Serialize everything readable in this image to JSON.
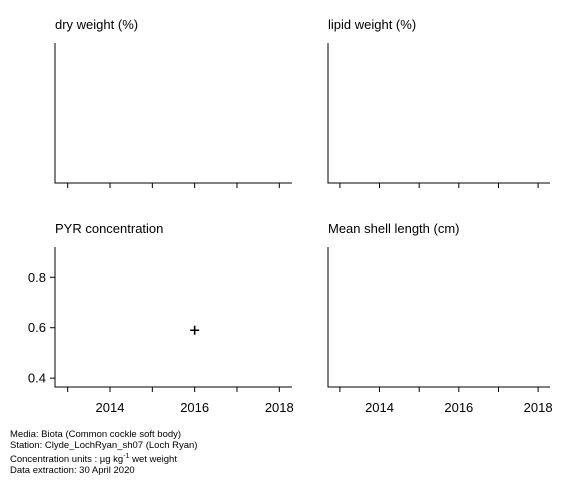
{
  "chart_data": [
    {
      "type": "scatter",
      "title": "dry weight (%)",
      "xlim": [
        2012.7,
        2018.3
      ],
      "x_ticks": [
        2013,
        2014,
        2015,
        2016,
        2017,
        2018
      ],
      "x_tick_labels": [],
      "y_ticks": [],
      "series": [
        {
          "x": [],
          "y": []
        }
      ]
    },
    {
      "type": "scatter",
      "title": "lipid weight (%)",
      "xlim": [
        2012.7,
        2018.3
      ],
      "x_ticks": [
        2013,
        2014,
        2015,
        2016,
        2017,
        2018
      ],
      "x_tick_labels": [],
      "y_ticks": [],
      "series": [
        {
          "x": [],
          "y": []
        }
      ]
    },
    {
      "type": "scatter",
      "title": "PYR concentration",
      "xlim": [
        2012.7,
        2018.3
      ],
      "ylim": [
        0.365,
        0.92
      ],
      "x_ticks": [
        2013,
        2014,
        2015,
        2016,
        2017,
        2018
      ],
      "x_tick_labels": [
        "2014",
        "2016",
        "2018"
      ],
      "y_ticks": [
        0.4,
        0.6,
        0.8
      ],
      "y_tick_labels": [
        "0.4",
        "0.6",
        "0.8"
      ],
      "series": [
        {
          "marker": "plus",
          "x": [
            2016
          ],
          "y": [
            0.59
          ]
        }
      ]
    },
    {
      "type": "scatter",
      "title": "Mean shell length (cm)",
      "xlim": [
        2012.7,
        2018.3
      ],
      "x_ticks": [
        2013,
        2014,
        2015,
        2016,
        2017,
        2018
      ],
      "x_tick_labels": [
        "2014",
        "2016",
        "2018"
      ],
      "y_ticks": [],
      "series": [
        {
          "x": [],
          "y": []
        }
      ]
    }
  ],
  "footer": {
    "media": "Media: Biota (Common cockle soft body)",
    "station": "Station: Clyde_LochRyan_sh07 (Loch Ryan)",
    "units_prefix": "Concentration units : µg kg",
    "units_exponent": "-1",
    "units_suffix": " wet weight",
    "extraction": "Data extraction: 30 April 2020"
  }
}
